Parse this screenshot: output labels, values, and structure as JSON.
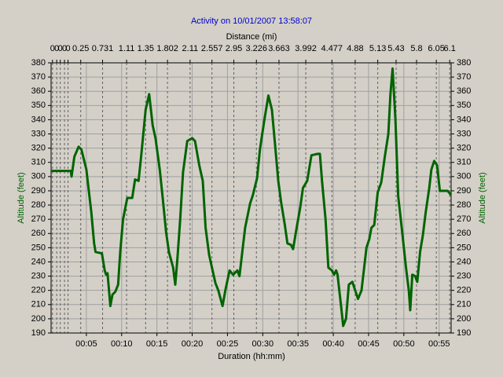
{
  "chart_data": {
    "type": "line",
    "title": "Activity on 10/01/2007 13:58:07",
    "x_label": "Duration (hh:mm)",
    "x2_label": "Distance (mi)",
    "y_label": "Altitude (feet)",
    "y2_label": "Altitude (feet)",
    "xlim": [
      0,
      56.7
    ],
    "ylim": [
      190,
      380
    ],
    "yticks": [
      190,
      200,
      210,
      220,
      230,
      240,
      250,
      260,
      270,
      280,
      290,
      300,
      310,
      320,
      330,
      340,
      350,
      360,
      370,
      380
    ],
    "xticks": [
      {
        "value": 5,
        "label": "00:05"
      },
      {
        "value": 10,
        "label": "00:10"
      },
      {
        "value": 15,
        "label": "00:15"
      },
      {
        "value": 20,
        "label": "00:20"
      },
      {
        "value": 25,
        "label": "00:25"
      },
      {
        "value": 30,
        "label": "00:30"
      },
      {
        "value": 35,
        "label": "00:35"
      },
      {
        "value": 40,
        "label": "00:40"
      },
      {
        "value": 45,
        "label": "00:45"
      },
      {
        "value": 50,
        "label": "00:50"
      },
      {
        "value": 55,
        "label": "00:55"
      }
    ],
    "x2ticks": [
      {
        "value": 0.2,
        "label": "0"
      },
      {
        "value": 0.8,
        "label": "0"
      },
      {
        "value": 1.3,
        "label": "0"
      },
      {
        "value": 1.9,
        "label": "0"
      },
      {
        "value": 2.4,
        "label": "0"
      },
      {
        "value": 4.2,
        "label": "0.25"
      },
      {
        "value": 7.3,
        "label": "0.731"
      },
      {
        "value": 10.7,
        "label": "1.11"
      },
      {
        "value": 13.4,
        "label": "1.35"
      },
      {
        "value": 16.5,
        "label": "1.802"
      },
      {
        "value": 19.7,
        "label": "2.11"
      },
      {
        "value": 22.8,
        "label": "2.557"
      },
      {
        "value": 25.9,
        "label": "2.95"
      },
      {
        "value": 29.1,
        "label": "3.226"
      },
      {
        "value": 32.3,
        "label": "3.663"
      },
      {
        "value": 36.1,
        "label": "3.992"
      },
      {
        "value": 39.8,
        "label": "4.477"
      },
      {
        "value": 43.1,
        "label": "4.88"
      },
      {
        "value": 46.3,
        "label": "5.13"
      },
      {
        "value": 48.9,
        "label": "5.43"
      },
      {
        "value": 51.8,
        "label": "5.8"
      },
      {
        "value": 54.6,
        "label": "6.05"
      },
      {
        "value": 56.5,
        "label": "6.1"
      }
    ],
    "grid": true,
    "series": [
      {
        "name": "Altitude",
        "color": "#006400",
        "x": [
          0,
          2.8,
          2.9,
          3.3,
          3.9,
          4.3,
          5.0,
          5.3,
          5.7,
          6.1,
          6.3,
          7.2,
          7.6,
          7.8,
          8.0,
          8.4,
          8.7,
          9.1,
          9.5,
          9.8,
          10.2,
          10.8,
          11.5,
          11.9,
          12.4,
          12.8,
          13.4,
          13.9,
          14.4,
          14.8,
          15.4,
          15.8,
          16.3,
          16.7,
          17.3,
          17.6,
          17.9,
          18.3,
          18.7,
          19.3,
          20.0,
          20.4,
          21.0,
          21.5,
          21.9,
          22.4,
          22.8,
          23.3,
          23.7,
          24.3,
          24.7,
          25.3,
          25.8,
          26.4,
          26.7,
          27.1,
          27.5,
          28.2,
          28.6,
          29.2,
          29.6,
          30.2,
          30.8,
          31.3,
          31.7,
          32.2,
          32.6,
          33.1,
          33.5,
          34.0,
          34.3,
          34.7,
          35.3,
          35.7,
          36.3,
          36.9,
          37.8,
          38.1,
          38.4,
          38.9,
          39.3,
          39.8,
          40.1,
          40.4,
          40.6,
          41.1,
          41.4,
          41.8,
          42.2,
          42.7,
          43.1,
          43.5,
          44.0,
          44.7,
          45.1,
          45.4,
          45.8,
          46.3,
          46.8,
          47.3,
          47.8,
          48.1,
          48.4,
          48.8,
          49.2,
          49.7,
          50.3,
          50.7,
          50.9,
          51.2,
          51.6,
          51.9,
          52.3,
          52.7,
          53.1,
          53.6,
          53.9,
          54.3,
          54.7,
          55.1,
          56.2,
          56.7
        ],
        "values": [
          304,
          304,
          300,
          314,
          321,
          319,
          305,
          292,
          275,
          253,
          247,
          246,
          234,
          231,
          232,
          209,
          217,
          219,
          224,
          247,
          270,
          285,
          285,
          298,
          297,
          316,
          347,
          358,
          336,
          327,
          305,
          286,
          261,
          247,
          236,
          224,
          242,
          270,
          303,
          325,
          327,
          325,
          308,
          297,
          264,
          245,
          236,
          225,
          220,
          209,
          220,
          234,
          231,
          234,
          230,
          247,
          264,
          281,
          287,
          299,
          319,
          339,
          357,
          347,
          325,
          297,
          282,
          267,
          253,
          252,
          249,
          261,
          278,
          292,
          297,
          315,
          316,
          316,
          297,
          270,
          236,
          234,
          231,
          234,
          231,
          209,
          195,
          200,
          224,
          226,
          220,
          214,
          220,
          250,
          256,
          264,
          266,
          289,
          296,
          314,
          330,
          358,
          376,
          341,
          286,
          264,
          236,
          220,
          206,
          231,
          230,
          226,
          247,
          259,
          275,
          292,
          305,
          311,
          308,
          290,
          290,
          287
        ]
      }
    ]
  }
}
